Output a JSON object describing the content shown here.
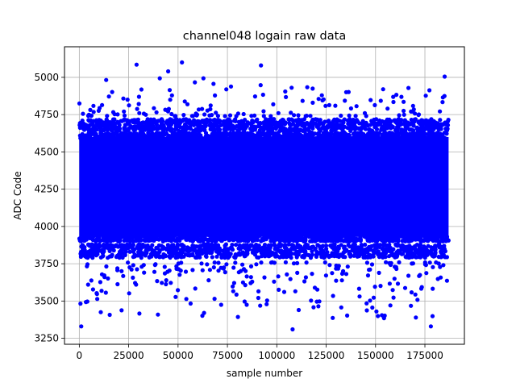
{
  "chart_data": {
    "type": "scatter",
    "title": "channel048 logain raw data",
    "xlabel": "sample number",
    "ylabel": "ADC Code",
    "xlim": [
      -7500,
      195000
    ],
    "ylim": [
      3210,
      5205
    ],
    "xticks": [
      0,
      25000,
      50000,
      75000,
      100000,
      125000,
      150000,
      175000
    ],
    "xtick_labels": [
      "0",
      "25000",
      "50000",
      "75000",
      "100000",
      "125000",
      "150000",
      "175000"
    ],
    "yticks": [
      3250,
      3500,
      3750,
      4000,
      4250,
      4500,
      4750,
      5000
    ],
    "ytick_labels": [
      "3250",
      "3500",
      "3750",
      "4000",
      "4250",
      "4500",
      "4750",
      "5000"
    ],
    "grid": true,
    "marker_color": "#0000ff",
    "series": [
      {
        "points_described": "dense band of about 187000 samples; x from 0 to about 187000",
        "dense_band": [
          3910,
          4620
        ],
        "upper_strip": [
          4640,
          4720
        ],
        "lower_strip": [
          3790,
          3880
        ],
        "outlier_range": [
          3310,
          5100
        ]
      }
    ],
    "notable_outliers": [
      {
        "x": 1000,
        "y": 3330
      },
      {
        "x": 29000,
        "y": 5085
      },
      {
        "x": 45000,
        "y": 5040
      },
      {
        "x": 52000,
        "y": 5100
      },
      {
        "x": 92000,
        "y": 5080
      },
      {
        "x": 108000,
        "y": 3310
      },
      {
        "x": 178000,
        "y": 3330
      },
      {
        "x": 185000,
        "y": 5005
      }
    ]
  }
}
